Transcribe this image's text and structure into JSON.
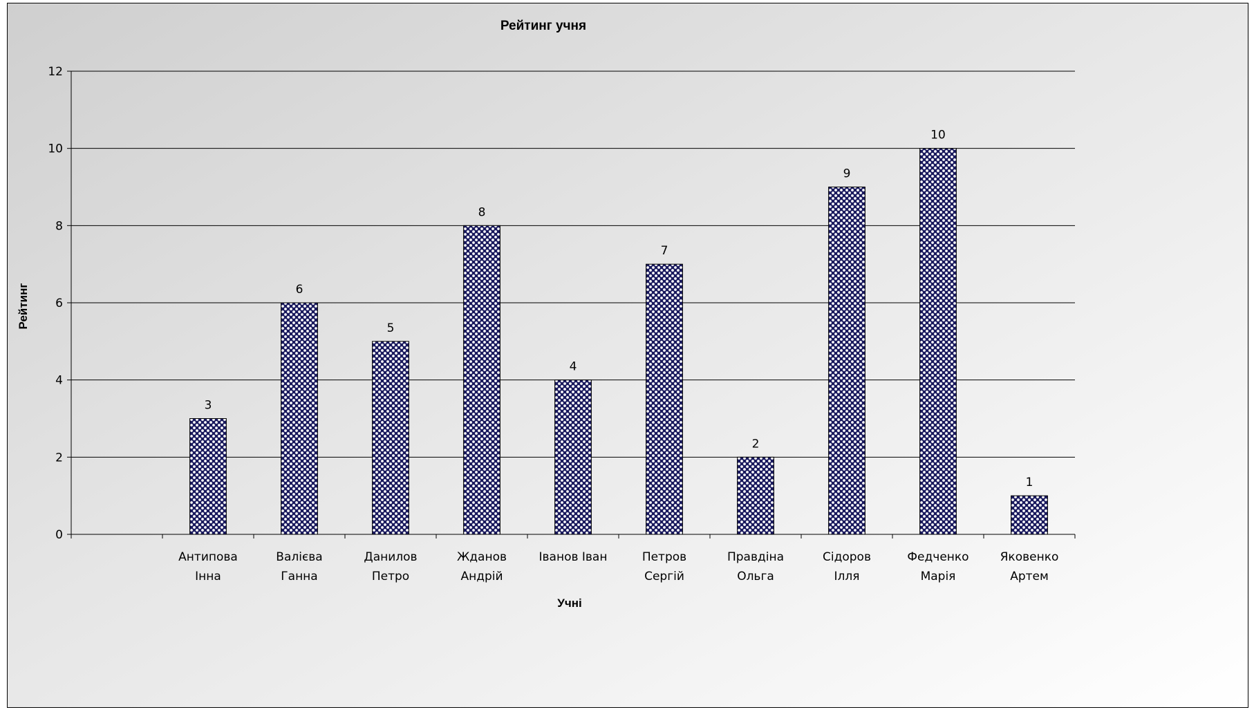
{
  "chart_data": {
    "type": "bar",
    "title": "Рейтинг учня",
    "xlabel": "Учні",
    "ylabel": "Рейтинг",
    "ylim": [
      0,
      12
    ],
    "yticks": [
      0,
      2,
      4,
      6,
      8,
      10,
      12
    ],
    "grid": true,
    "categories": [
      [
        "",
        ""
      ],
      [
        "Антипова",
        "Інна"
      ],
      [
        "Валієва",
        "Ганна"
      ],
      [
        "Данилов",
        "Петро"
      ],
      [
        "Жданов",
        "Андрій"
      ],
      [
        "Іванов Іван"
      ],
      [
        "Петров",
        "Сергій"
      ],
      [
        "Правдіна",
        "Ольга"
      ],
      [
        "Сідоров",
        "Ілля"
      ],
      [
        "Федченко",
        "Марія"
      ],
      [
        "Яковенко",
        "Артем"
      ]
    ],
    "values": [
      null,
      3,
      6,
      5,
      8,
      4,
      7,
      2,
      9,
      10,
      1
    ],
    "data_labels": [
      null,
      "3",
      "6",
      "5",
      "8",
      "4",
      "7",
      "2",
      "9",
      "10",
      "1"
    ],
    "bar_color": "#1a1a5e",
    "bar_dot_color": "#ffffff"
  }
}
